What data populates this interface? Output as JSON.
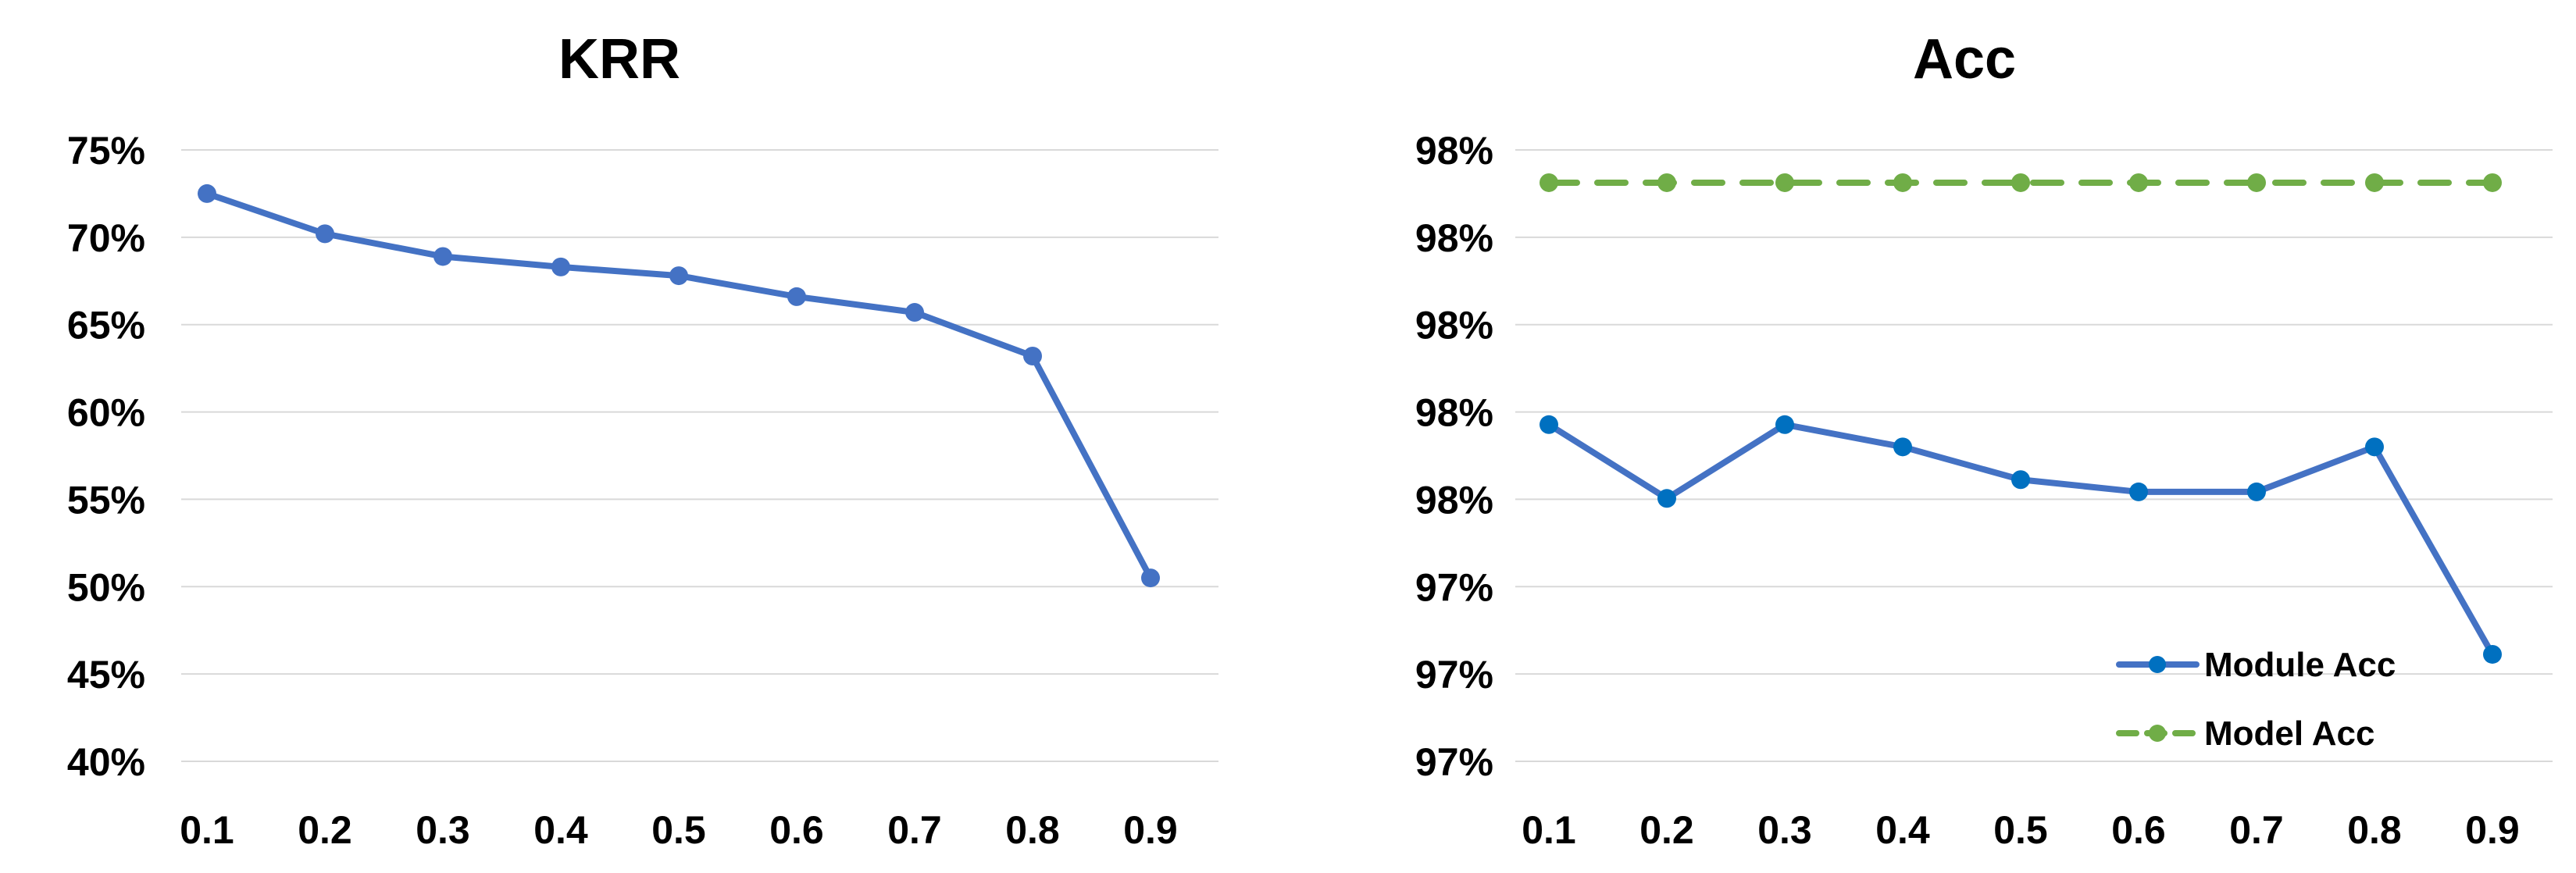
{
  "chart_data": [
    {
      "type": "line",
      "title": "KRR",
      "xlabel": "",
      "ylabel": "",
      "categories": [
        "0.1",
        "0.2",
        "0.3",
        "0.4",
        "0.5",
        "0.6",
        "0.7",
        "0.8",
        "0.9"
      ],
      "y_tick_labels": [
        "40%",
        "45%",
        "50%",
        "55%",
        "60%",
        "65%",
        "70%",
        "75%"
      ],
      "ylim": [
        0.4,
        0.75
      ],
      "grid": true,
      "series": [
        {
          "values": [
            0.725,
            0.702,
            0.689,
            0.683,
            0.678,
            0.666,
            0.657,
            0.632,
            0.505
          ],
          "color": "#4472C4",
          "marker_color": "#4472C4",
          "dashed": false
        }
      ]
    },
    {
      "type": "line",
      "title": "Acc",
      "xlabel": "",
      "ylabel": "",
      "categories": [
        "0.1",
        "0.2",
        "0.3",
        "0.4",
        "0.5",
        "0.6",
        "0.7",
        "0.8",
        "0.9"
      ],
      "y_tick_labels": [
        "97%",
        "97%",
        "97%",
        "98%",
        "98%",
        "98%",
        "98%",
        "98%"
      ],
      "ylim": [
        0.97,
        0.984
      ],
      "grid": true,
      "legend": "bottom-right",
      "series": [
        {
          "name": "Module Acc",
          "values": [
            0.97771,
            0.97602,
            0.97771,
            0.9772,
            0.97645,
            0.97617,
            0.97617,
            0.9772,
            0.97245
          ],
          "color": "#4472C4",
          "marker_color": "#0070C0",
          "dashed": false
        },
        {
          "name": "Model Acc",
          "values": [
            0.98325,
            0.98325,
            0.98325,
            0.98325,
            0.98325,
            0.98325,
            0.98325,
            0.98325,
            0.98325
          ],
          "color": "#70AD47",
          "marker_color": "#70AD47",
          "dashed": true
        }
      ]
    }
  ]
}
